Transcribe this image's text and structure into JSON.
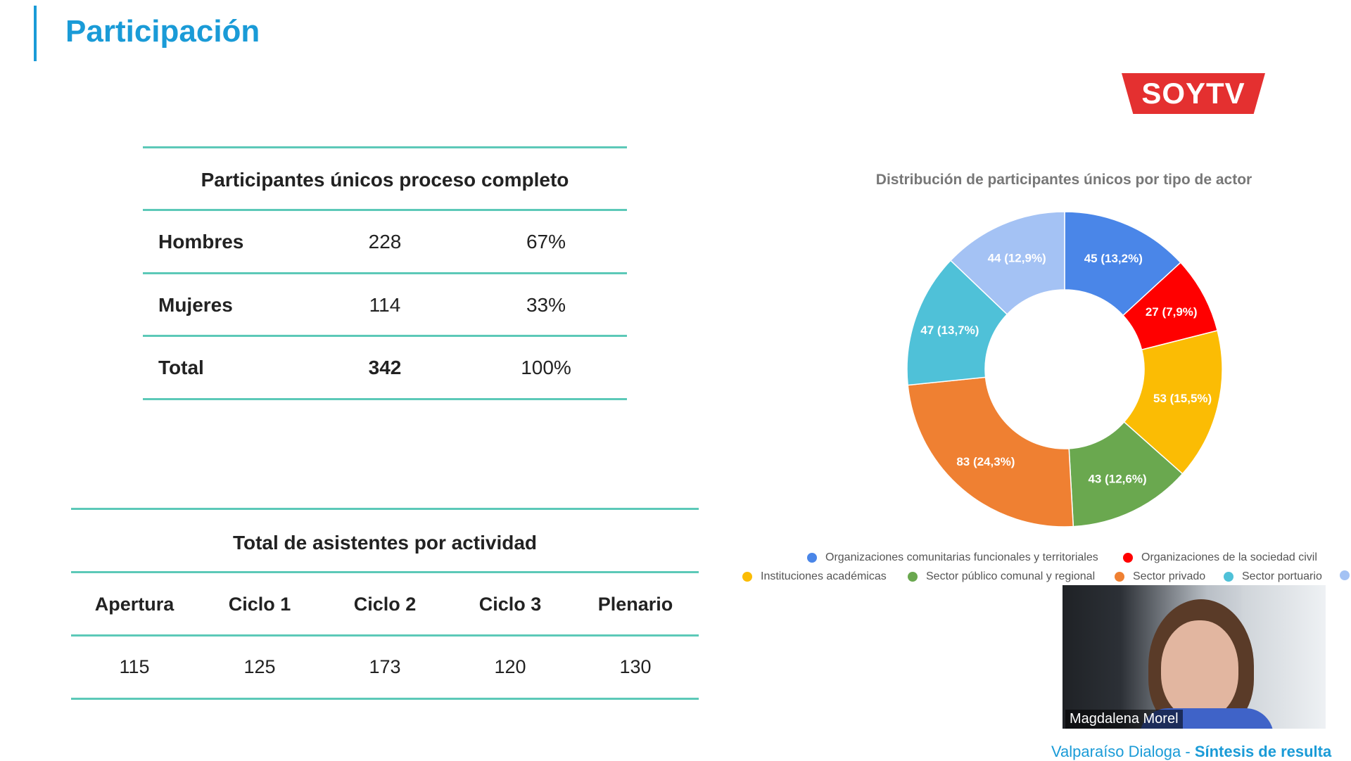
{
  "page": {
    "title": "Participación"
  },
  "logo": {
    "text": "SOYTV"
  },
  "participants_table": {
    "title": "Participantes únicos proceso completo",
    "rows": [
      {
        "label": "Hombres",
        "count": "228",
        "percent": "67%"
      },
      {
        "label": "Mujeres",
        "count": "114",
        "percent": "33%"
      },
      {
        "label": "Total",
        "count": "342",
        "percent": "100%"
      }
    ]
  },
  "attendance_table": {
    "title": "Total de asistentes por actividad",
    "headers": [
      "Apertura",
      "Ciclo 1",
      "Ciclo 2",
      "Ciclo 3",
      "Plenario"
    ],
    "values": [
      "115",
      "125",
      "173",
      "120",
      "130"
    ]
  },
  "chart_data": {
    "type": "pie",
    "style": "donut",
    "title": "Distribución de participantes únicos por tipo de actor",
    "legend_position": "bottom",
    "slices": [
      {
        "name": "Organizaciones comunitarias funcionales y territoriales",
        "value": 45,
        "label": "45 (13,2%)",
        "color": "#4a86e8"
      },
      {
        "name": "Organizaciones de la sociedad civil",
        "value": 27,
        "label": "27 (7,9%)",
        "color": "#ff0000"
      },
      {
        "name": "Instituciones académicas",
        "value": 53,
        "label": "53 (15,5%)",
        "color": "#fbbc04"
      },
      {
        "name": "Sector público comunal y regional",
        "value": 43,
        "label": "43 (12,6%)",
        "color": "#6aa84f"
      },
      {
        "name": "Sector privado",
        "value": 83,
        "label": "83 (24,3%)",
        "color": "#ef8032"
      },
      {
        "name": "Sector portuario",
        "value": 47,
        "label": "47 (13,7%)",
        "color": "#4fc1d8"
      },
      {
        "name": "",
        "value": 44,
        "label": "44 (12,9%)",
        "color": "#a4c2f4"
      }
    ]
  },
  "video": {
    "participant_name": "Magdalena Morel"
  },
  "footer": {
    "prefix": "Valparaíso Dialoga - ",
    "highlight": "Síntesis de resulta"
  }
}
